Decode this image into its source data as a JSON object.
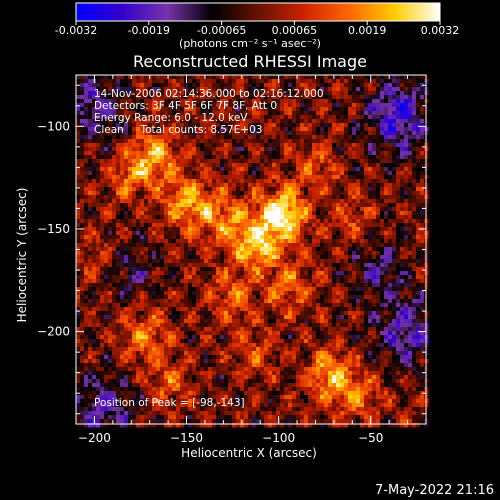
{
  "colorbar": {
    "ticks": [
      "-0.0032",
      "-0.0019",
      "-0.00065",
      "0.00065",
      "0.0019",
      "0.0032"
    ],
    "unit_label": "(photons cm⁻² s⁻¹ asec⁻²)",
    "colors": [
      "#0000ff",
      "#3300cc",
      "#7733aa",
      "#000000",
      "#661100",
      "#cc2200",
      "#ff6600",
      "#ffcc00",
      "#ffffff"
    ]
  },
  "title": "Reconstructed RHESSI Image",
  "info_lines": [
    "14-Nov-2006 02:14:36.000 to 02:16:12.000",
    "Detectors: 3F 4F 5F 6F 7F 8F, Att 0",
    "Energy Range: 6.0 - 12.0 keV",
    "Clean     Total counts: 8.57E+03"
  ],
  "peak_text": "Position of Peak = [-98,-143]",
  "date_stamp": "7-May-2022 21:16",
  "chart_data": {
    "type": "heatmap",
    "title": "Reconstructed RHESSI Image",
    "xlabel": "Heliocentric X (arcsec)",
    "ylabel": "Heliocentric Y (arcsec)",
    "xlim": [
      -210,
      -20
    ],
    "ylim": [
      -245,
      -75
    ],
    "x_ticks": [
      -200,
      -150,
      -100,
      -50
    ],
    "y_ticks": [
      -100,
      -150,
      -200
    ],
    "x_tick_labels": [
      "−200",
      "−150",
      "−100",
      "−50"
    ],
    "y_tick_labels": [
      "−100",
      "−150",
      "−200"
    ],
    "value_range": [
      -0.0032,
      0.0032
    ],
    "peak": [
      -98,
      -143
    ],
    "sources": [
      {
        "x": -98,
        "y": -143,
        "amplitude": 0.0032,
        "sigma": 9
      },
      {
        "x": -112,
        "y": -158,
        "amplitude": 0.0024,
        "sigma": 8
      },
      {
        "x": -150,
        "y": -137,
        "amplitude": 0.0019,
        "sigma": 9
      },
      {
        "x": -168,
        "y": -115,
        "amplitude": 0.0021,
        "sigma": 9
      },
      {
        "x": -183,
        "y": -125,
        "amplitude": 0.0013,
        "sigma": 8
      },
      {
        "x": -130,
        "y": -145,
        "amplitude": 0.0017,
        "sigma": 10
      },
      {
        "x": -125,
        "y": -183,
        "amplitude": 0.0014,
        "sigma": 9
      },
      {
        "x": -95,
        "y": -178,
        "amplitude": 0.0015,
        "sigma": 9
      },
      {
        "x": -80,
        "y": -120,
        "amplitude": 0.0012,
        "sigma": 8
      },
      {
        "x": -60,
        "y": -145,
        "amplitude": 0.0009,
        "sigma": 8
      },
      {
        "x": -172,
        "y": -202,
        "amplitude": 0.0016,
        "sigma": 9
      },
      {
        "x": -160,
        "y": -225,
        "amplitude": 0.0013,
        "sigma": 8
      },
      {
        "x": -72,
        "y": -222,
        "amplitude": 0.0022,
        "sigma": 9
      },
      {
        "x": -55,
        "y": -232,
        "amplitude": 0.0014,
        "sigma": 8
      },
      {
        "x": -112,
        "y": -210,
        "amplitude": 0.001,
        "sigma": 8
      },
      {
        "x": -200,
        "y": -165,
        "amplitude": 0.0008,
        "sigma": 8
      },
      {
        "x": -35,
        "y": -95,
        "amplitude": -0.0022,
        "sigma": 12
      },
      {
        "x": -30,
        "y": -200,
        "amplitude": -0.0018,
        "sigma": 12
      },
      {
        "x": -200,
        "y": -90,
        "amplitude": -0.0015,
        "sigma": 12
      },
      {
        "x": -195,
        "y": -238,
        "amplitude": -0.0016,
        "sigma": 12
      },
      {
        "x": -45,
        "y": -170,
        "amplitude": -0.0012,
        "sigma": 10
      },
      {
        "x": -180,
        "y": -170,
        "amplitude": -0.001,
        "sigma": 10
      }
    ]
  }
}
